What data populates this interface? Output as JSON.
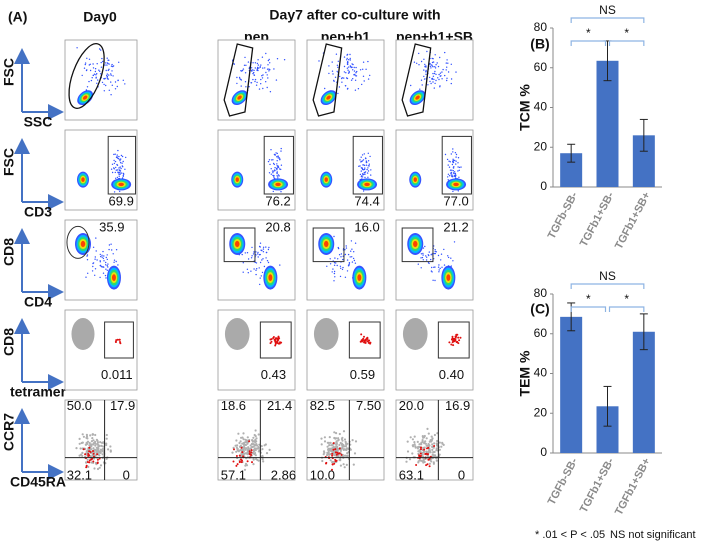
{
  "panel_a": {
    "label": "(A)",
    "day0": "Day0",
    "day7": "Day7 after co-culture with",
    "columns": [
      "pep",
      "pep+b1",
      "pep+b1+SB"
    ],
    "rows": [
      {
        "y": "FSC",
        "x": "SSC"
      },
      {
        "y": "FSC",
        "x": "CD3"
      },
      {
        "y": "CD8",
        "x": "CD4"
      },
      {
        "y": "CD8",
        "x": "tetramer"
      },
      {
        "y": "CCR7",
        "x": "CD45RA"
      }
    ],
    "gates": {
      "cd3": [
        "69.9",
        "76.2",
        "74.4",
        "77.0"
      ],
      "cd8": [
        "35.9",
        "20.8",
        "16.0",
        "21.2"
      ],
      "tetramer": [
        "0.011",
        "0.43",
        "0.59",
        "0.40"
      ]
    },
    "quadrants": [
      {
        "ul": "50.0",
        "ur": "17.9",
        "ll": "32.1",
        "lr": "0"
      },
      {
        "ul": "18.6",
        "ur": "21.4",
        "ll": "57.1",
        "lr": "2.86"
      },
      {
        "ul": "82.5",
        "ur": "7.50",
        "ll": "10.0"
      },
      {
        "ul": "20.0",
        "ur": "16.9",
        "ll": "63.1",
        "lr": "0"
      }
    ]
  },
  "chart_data": [
    {
      "type": "bar",
      "panel_label": "(B)",
      "y_label": "TCM %",
      "categories": [
        "TGFb-SB-",
        "TGFb1+SB-",
        "TGFb1+SB+"
      ],
      "values": [
        17,
        63.5,
        26
      ],
      "errors": [
        4.5,
        10,
        8
      ],
      "color": "#4472c4",
      "ylim": [
        0,
        80
      ],
      "yticks": [
        0,
        20,
        40,
        60,
        80
      ],
      "significance": [
        "NS",
        "*",
        "*"
      ]
    },
    {
      "type": "bar",
      "panel_label": "(C)",
      "y_label": "TEM %",
      "categories": [
        "TGFb-SB-",
        "TGFb1+SB-",
        "TGFb1+SB+"
      ],
      "values": [
        68.5,
        23.5,
        61
      ],
      "errors": [
        7,
        10,
        9
      ],
      "color": "#4472c4",
      "ylim": [
        0,
        80
      ],
      "yticks": [
        0,
        20,
        40,
        60,
        80
      ],
      "significance": [
        "NS",
        "*",
        "*"
      ]
    }
  ],
  "footnote": {
    "sig": "* .01 < P < .05",
    "ns": "NS not significant"
  }
}
